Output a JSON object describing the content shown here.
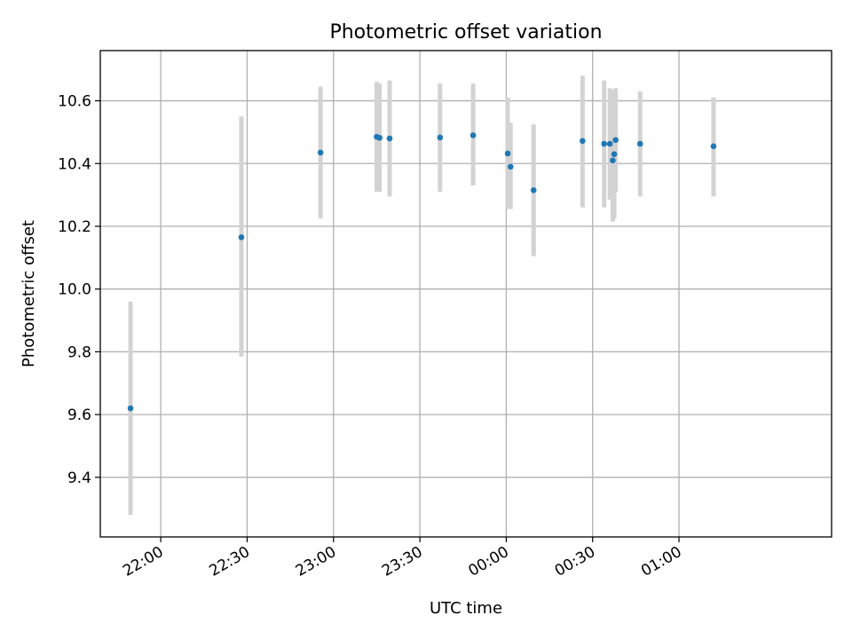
{
  "chart_data": {
    "type": "scatter",
    "title": "Photometric offset variation",
    "xlabel": "UTC time",
    "ylabel": "Photometric offset",
    "xlim": [
      "21:39",
      "01:53"
    ],
    "ylim": [
      9.21,
      10.76
    ],
    "x_ticks": [
      "22:00",
      "22:30",
      "23:00",
      "23:30",
      "00:00",
      "00:30",
      "01:00"
    ],
    "y_ticks": [
      "9.4",
      "9.6",
      "9.8",
      "10.0",
      "10.2",
      "10.4",
      "10.6"
    ],
    "grid": true,
    "colors": {
      "point": "#1f77b4",
      "errorbar": "#d3d3d3",
      "grid": "#b0b0b0"
    },
    "points": [
      {
        "x": "21:49.5",
        "y": 9.62,
        "ylow": 9.28,
        "yhigh": 9.96
      },
      {
        "x": "22:28.0",
        "y": 10.165,
        "ylow": 9.785,
        "yhigh": 10.55
      },
      {
        "x": "22:55.5",
        "y": 10.435,
        "ylow": 10.225,
        "yhigh": 10.645
      },
      {
        "x": "23:15.0",
        "y": 10.485,
        "ylow": 10.31,
        "yhigh": 10.66
      },
      {
        "x": "23:16.0",
        "y": 10.482,
        "ylow": 10.31,
        "yhigh": 10.655
      },
      {
        "x": "23:19.5",
        "y": 10.48,
        "ylow": 10.295,
        "yhigh": 10.665
      },
      {
        "x": "23:37.0",
        "y": 10.483,
        "ylow": 10.31,
        "yhigh": 10.655
      },
      {
        "x": "23:48.5",
        "y": 10.49,
        "ylow": 10.33,
        "yhigh": 10.655
      },
      {
        "x": "00:00.5",
        "y": 10.432,
        "ylow": 10.255,
        "yhigh": 10.61
      },
      {
        "x": "00:01.5",
        "y": 10.39,
        "ylow": 10.255,
        "yhigh": 10.53
      },
      {
        "x": "00:09.5",
        "y": 10.315,
        "ylow": 10.105,
        "yhigh": 10.525
      },
      {
        "x": "00:26.5",
        "y": 10.472,
        "ylow": 10.26,
        "yhigh": 10.68
      },
      {
        "x": "00:34.0",
        "y": 10.463,
        "ylow": 10.26,
        "yhigh": 10.665
      },
      {
        "x": "00:36.0",
        "y": 10.463,
        "ylow": 10.285,
        "yhigh": 10.64
      },
      {
        "x": "00:37.0",
        "y": 10.41,
        "ylow": 10.215,
        "yhigh": 10.635
      },
      {
        "x": "00:37.5",
        "y": 10.43,
        "ylow": 10.225,
        "yhigh": 10.63
      },
      {
        "x": "00:38.0",
        "y": 10.475,
        "ylow": 10.31,
        "yhigh": 10.64
      },
      {
        "x": "00:46.5",
        "y": 10.463,
        "ylow": 10.295,
        "yhigh": 10.63
      },
      {
        "x": "01:12.0",
        "y": 10.455,
        "ylow": 10.295,
        "yhigh": 10.61
      }
    ]
  }
}
